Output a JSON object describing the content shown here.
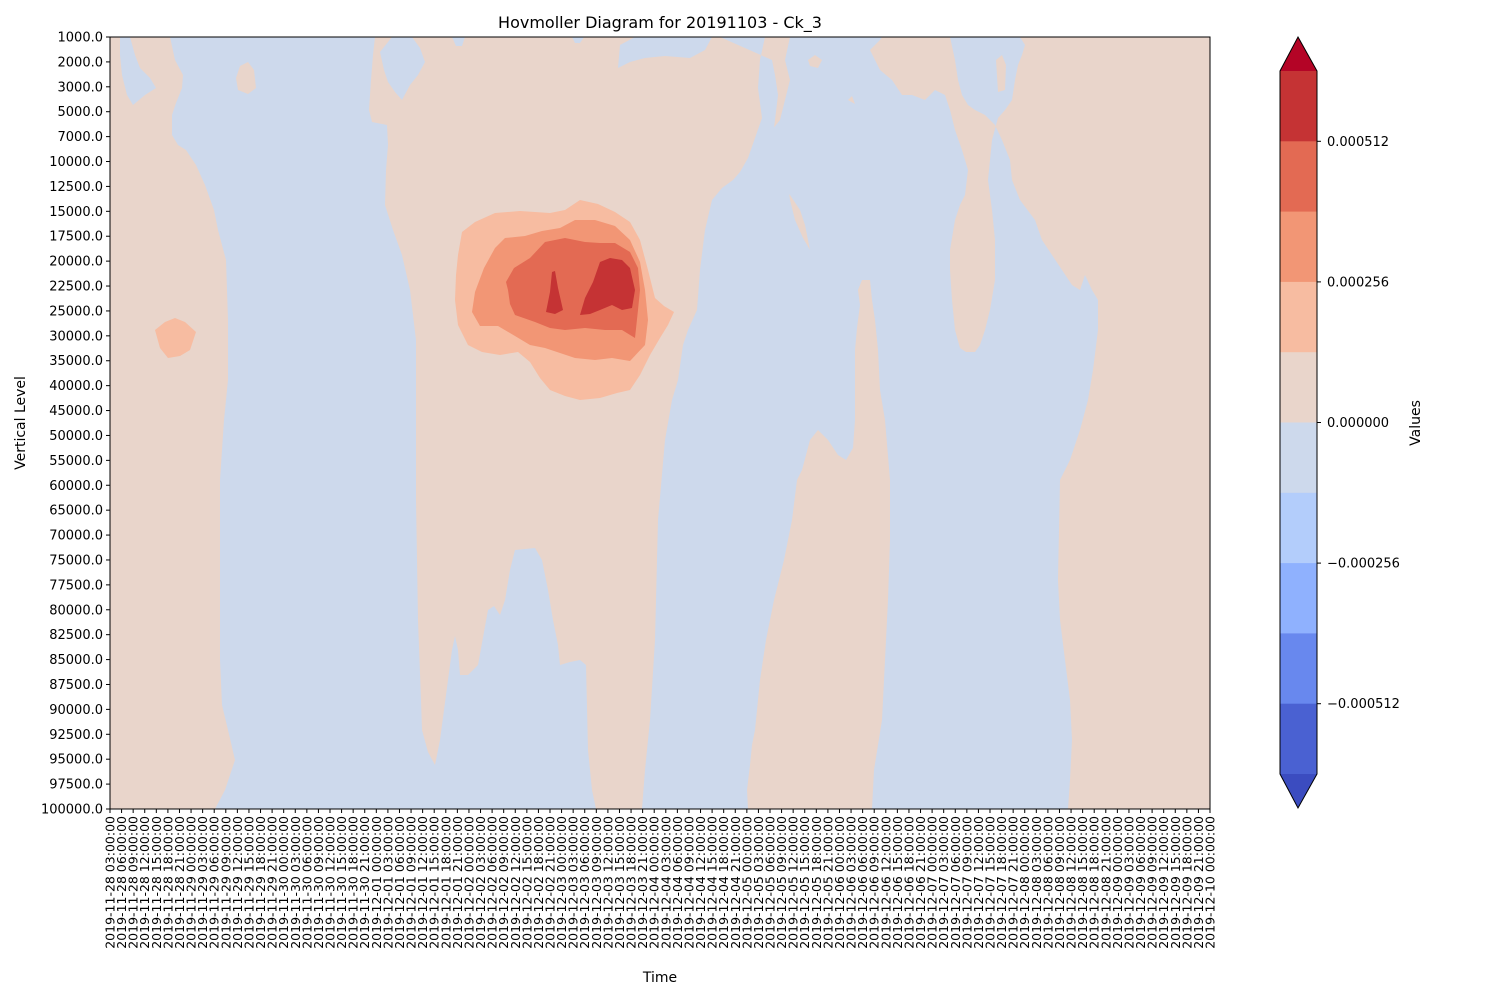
{
  "chart_data": {
    "type": "heatmap",
    "title": "Hovmoller Diagram for 20191103 - Ck_3",
    "xlabel": "Time",
    "ylabel": "Vertical Level",
    "colorbar_label": "Values",
    "colorbar_ticks": [
      "0.000512",
      "0.000256",
      "0.000000",
      "−0.000256",
      "−0.000512"
    ],
    "y_levels": [
      "1000.0",
      "2000.0",
      "3000.0",
      "5000.0",
      "7000.0",
      "10000.0",
      "12500.0",
      "15000.0",
      "17500.0",
      "20000.0",
      "22500.0",
      "25000.0",
      "30000.0",
      "35000.0",
      "40000.0",
      "45000.0",
      "50000.0",
      "55000.0",
      "60000.0",
      "65000.0",
      "70000.0",
      "75000.0",
      "77500.0",
      "80000.0",
      "82500.0",
      "85000.0",
      "87500.0",
      "90000.0",
      "92500.0",
      "95000.0",
      "97500.0",
      "100000.0"
    ],
    "x_times": [
      "2019-11-28 03:00:00",
      "2019-11-28 06:00:00",
      "2019-11-28 09:00:00",
      "2019-11-28 12:00:00",
      "2019-11-28 15:00:00",
      "2019-11-28 18:00:00",
      "2019-11-28 21:00:00",
      "2019-11-29 00:00:00",
      "2019-11-29 03:00:00",
      "2019-11-29 06:00:00",
      "2019-11-29 09:00:00",
      "2019-11-29 12:00:00",
      "2019-11-29 15:00:00",
      "2019-11-29 18:00:00",
      "2019-11-29 21:00:00",
      "2019-11-30 00:00:00",
      "2019-11-30 03:00:00",
      "2019-11-30 06:00:00",
      "2019-11-30 09:00:00",
      "2019-11-30 12:00:00",
      "2019-11-30 15:00:00",
      "2019-11-30 18:00:00",
      "2019-11-30 21:00:00",
      "2019-12-01 00:00:00",
      "2019-12-01 03:00:00",
      "2019-12-01 06:00:00",
      "2019-12-01 09:00:00",
      "2019-12-01 12:00:00",
      "2019-12-01 15:00:00",
      "2019-12-01 18:00:00",
      "2019-12-01 21:00:00",
      "2019-12-02 00:00:00",
      "2019-12-02 03:00:00",
      "2019-12-02 06:00:00",
      "2019-12-02 09:00:00",
      "2019-12-02 12:00:00",
      "2019-12-02 15:00:00",
      "2019-12-02 18:00:00",
      "2019-12-02 21:00:00",
      "2019-12-03 00:00:00",
      "2019-12-03 03:00:00",
      "2019-12-03 06:00:00",
      "2019-12-03 09:00:00",
      "2019-12-03 12:00:00",
      "2019-12-03 15:00:00",
      "2019-12-03 18:00:00",
      "2019-12-03 21:00:00",
      "2019-12-04 00:00:00",
      "2019-12-04 03:00:00",
      "2019-12-04 06:00:00",
      "2019-12-04 09:00:00",
      "2019-12-04 12:00:00",
      "2019-12-04 15:00:00",
      "2019-12-04 18:00:00",
      "2019-12-04 21:00:00",
      "2019-12-05 00:00:00",
      "2019-12-05 03:00:00",
      "2019-12-05 06:00:00",
      "2019-12-05 09:00:00",
      "2019-12-05 12:00:00",
      "2019-12-05 15:00:00",
      "2019-12-05 18:00:00",
      "2019-12-05 21:00:00",
      "2019-12-06 00:00:00",
      "2019-12-06 03:00:00",
      "2019-12-06 06:00:00",
      "2019-12-06 09:00:00",
      "2019-12-06 12:00:00",
      "2019-12-06 15:00:00",
      "2019-12-06 18:00:00",
      "2019-12-06 21:00:00",
      "2019-12-07 00:00:00",
      "2019-12-07 03:00:00",
      "2019-12-07 06:00:00",
      "2019-12-07 09:00:00",
      "2019-12-07 12:00:00",
      "2019-12-07 15:00:00",
      "2019-12-07 18:00:00",
      "2019-12-07 21:00:00",
      "2019-12-08 00:00:00",
      "2019-12-08 03:00:00",
      "2019-12-08 06:00:00",
      "2019-12-08 09:00:00",
      "2019-12-08 12:00:00",
      "2019-12-08 15:00:00",
      "2019-12-08 18:00:00",
      "2019-12-08 21:00:00",
      "2019-12-09 00:00:00",
      "2019-12-09 03:00:00",
      "2019-12-09 06:00:00",
      "2019-12-09 09:00:00",
      "2019-12-09 12:00:00",
      "2019-12-09 15:00:00",
      "2019-12-09 18:00:00",
      "2019-12-09 21:00:00",
      "2019-12-10 00:00:00"
    ],
    "colormap": "coolwarm",
    "levels": [
      "#3b4cc0",
      "#4a61d2",
      "#6888ee",
      "#8fb1fe",
      "#b3cdfb",
      "#cdd9ec",
      "#e9d5cb",
      "#f7bca1",
      "#f29675",
      "#e36a53",
      "#c53334",
      "#b40426"
    ],
    "grid": false
  },
  "colors": {
    "neutral_negative": "#cdd9ec",
    "neutral_positive": "#e9d5cb",
    "weak_positive": "#f7bca1",
    "moderate_positive": "#f29675",
    "strong_positive": "#e36a53",
    "max_positive": "#c53334"
  }
}
